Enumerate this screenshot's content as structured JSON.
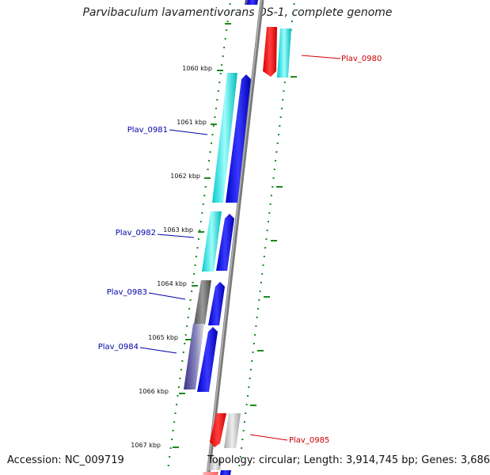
{
  "title": "Parvibaculum lavamentivorans DS-1, complete genome",
  "footer": {
    "accession": "Accession: NC_009719",
    "topology": "Topology: circular; Length: 3,914,745 bp; Genes: 3,686"
  },
  "ticks": [
    {
      "label": "1060 kbp"
    },
    {
      "label": "1061 kbp"
    },
    {
      "label": "1062 kbp"
    },
    {
      "label": "1063 kbp"
    },
    {
      "label": "1064 kbp"
    },
    {
      "label": "1065 kbp"
    },
    {
      "label": "1066 kbp"
    },
    {
      "label": "1067 kbp"
    }
  ],
  "gene_labels": [
    {
      "text": "Plav_0980",
      "color": "#cc0000"
    },
    {
      "text": "Plav_0981",
      "color": "#0000aa"
    },
    {
      "text": "Plav_0982",
      "color": "#0000aa"
    },
    {
      "text": "Plav_0983",
      "color": "#0000aa"
    },
    {
      "text": "Plav_0984",
      "color": "#0000aa"
    },
    {
      "text": "Plav_0985",
      "color": "#cc0000"
    }
  ],
  "colors": {
    "backbone": "#777777",
    "dots": "#1a8a1a",
    "cyan": "#00e0e0",
    "blue": "#0000e6",
    "red": "#ff0000",
    "gray": "#777777",
    "slate": "#4a4090",
    "lightgray": "#c8c8c8",
    "pink": "#ff9999"
  }
}
